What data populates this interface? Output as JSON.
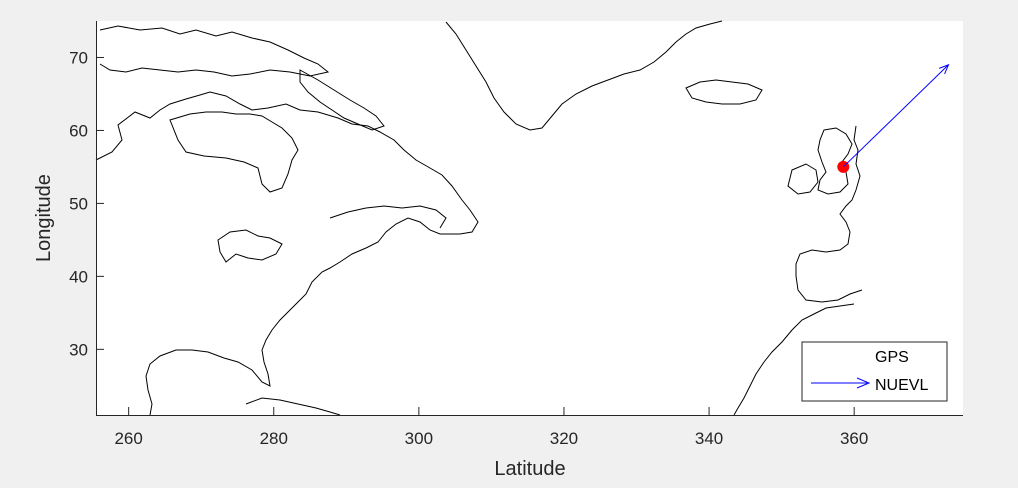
{
  "figure": {
    "background": "#f0f0f0",
    "axes_background": "#ffffff",
    "coast_color": "#000000"
  },
  "chart_data": {
    "type": "map-plot",
    "title": "",
    "xlabel": "Latitude",
    "ylabel": "Longitude",
    "xlim": [
      255.5,
      375
    ],
    "ylim": [
      21,
      75
    ],
    "xticks": [
      260,
      280,
      300,
      320,
      340,
      360
    ],
    "yticks": [
      30,
      40,
      50,
      60,
      70
    ],
    "grid": false,
    "series": [
      {
        "name": "GPS",
        "type": "scatter",
        "color": "#ff0000",
        "marker": "circle",
        "points": [
          [
            358.5,
            55
          ]
        ]
      },
      {
        "name": "NUEVL",
        "type": "vector",
        "color": "#0000ff",
        "origin": [
          358.5,
          55
        ],
        "tip": [
          373,
          69
        ]
      }
    ],
    "legend": {
      "position": "bottom-right",
      "entries": [
        "GPS",
        "NUEVL"
      ]
    }
  }
}
